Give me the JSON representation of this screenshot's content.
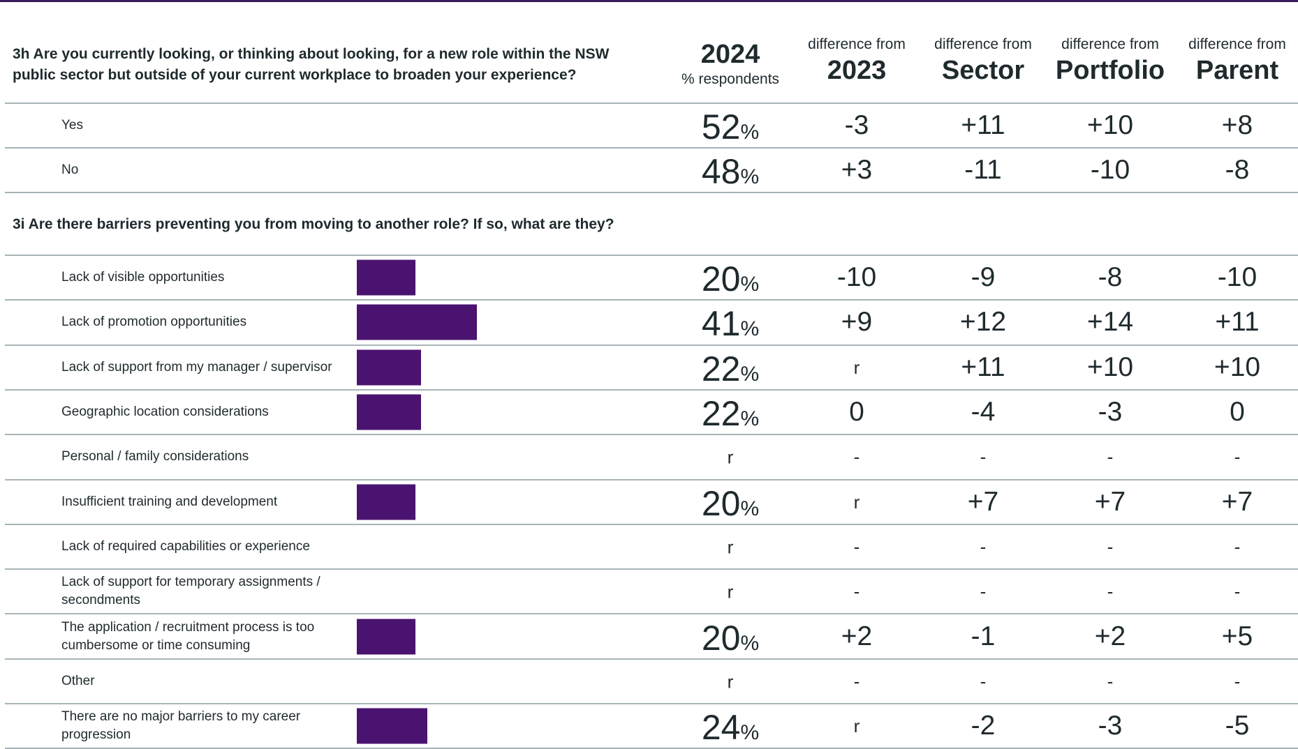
{
  "colors": {
    "bar": "#4a1370",
    "rule": "#3a1d5e",
    "divider": "#a7b4b8",
    "text": "#1f2a2e"
  },
  "header": {
    "year": "2024",
    "year_sub": "% respondents",
    "diff_prefix": "difference from",
    "col_2023": "2023",
    "col_sector": "Sector",
    "col_portfolio": "Portfolio",
    "col_parent": "Parent"
  },
  "q1": {
    "title": "3h Are you currently looking, or thinking about looking, for a new role within the NSW public sector but outside of your current workplace to broaden your experience?",
    "rows": [
      {
        "label": "Yes",
        "pct": "52",
        "sym": "%",
        "d2023": "-3",
        "sector": "+11",
        "portfolio": "+10",
        "parent": "+8"
      },
      {
        "label": "No",
        "pct": "48",
        "sym": "%",
        "d2023": "+3",
        "sector": "-11",
        "portfolio": "-10",
        "parent": "-8"
      }
    ]
  },
  "q2": {
    "title": "3i Are there barriers preventing you from moving to another role? If so, what are they?",
    "rows": [
      {
        "label": "Lack of visible opportunities",
        "value": 20,
        "pct": "20",
        "sym": "%",
        "d2023": "-10",
        "sector": "-9",
        "portfolio": "-8",
        "parent": "-10"
      },
      {
        "label": "Lack of promotion opportunities",
        "value": 41,
        "pct": "41",
        "sym": "%",
        "d2023": "+9",
        "sector": "+12",
        "portfolio": "+14",
        "parent": "+11"
      },
      {
        "label": "Lack of support from my manager / supervisor",
        "value": 22,
        "pct": "22",
        "sym": "%",
        "d2023": "r",
        "sector": "+11",
        "portfolio": "+10",
        "parent": "+10"
      },
      {
        "label": "Geographic location considerations",
        "value": 22,
        "pct": "22",
        "sym": "%",
        "d2023": "0",
        "sector": "-4",
        "portfolio": "-3",
        "parent": "0"
      },
      {
        "label": "Personal / family considerations",
        "value": null,
        "pct": "r",
        "sym": "",
        "d2023": "-",
        "sector": "-",
        "portfolio": "-",
        "parent": "-"
      },
      {
        "label": "Insufficient training and development",
        "value": 20,
        "pct": "20",
        "sym": "%",
        "d2023": "r",
        "sector": "+7",
        "portfolio": "+7",
        "parent": "+7"
      },
      {
        "label": "Lack of required capabilities or experience",
        "value": null,
        "pct": "r",
        "sym": "",
        "d2023": "-",
        "sector": "-",
        "portfolio": "-",
        "parent": "-"
      },
      {
        "label": "Lack of support for temporary assignments / secondments",
        "value": null,
        "pct": "r",
        "sym": "",
        "d2023": "-",
        "sector": "-",
        "portfolio": "-",
        "parent": "-"
      },
      {
        "label": "The application / recruitment process is too cumbersome or time consuming",
        "value": 20,
        "pct": "20",
        "sym": "%",
        "d2023": "+2",
        "sector": "-1",
        "portfolio": "+2",
        "parent": "+5"
      },
      {
        "label": "Other",
        "value": null,
        "pct": "r",
        "sym": "",
        "d2023": "-",
        "sector": "-",
        "portfolio": "-",
        "parent": "-"
      },
      {
        "label": "There are no major barriers to my career progression",
        "value": 24,
        "pct": "24",
        "sym": "%",
        "d2023": "r",
        "sector": "-2",
        "portfolio": "-3",
        "parent": "-5"
      }
    ]
  }
}
